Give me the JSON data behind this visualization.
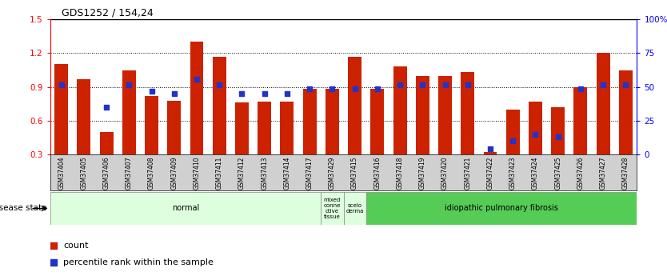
{
  "title": "GDS1252 / 154,24",
  "samples": [
    "GSM37404",
    "GSM37405",
    "GSM37406",
    "GSM37407",
    "GSM37408",
    "GSM37409",
    "GSM37410",
    "GSM37411",
    "GSM37412",
    "GSM37413",
    "GSM37414",
    "GSM37417",
    "GSM37429",
    "GSM37415",
    "GSM37416",
    "GSM37418",
    "GSM37419",
    "GSM37420",
    "GSM37421",
    "GSM37422",
    "GSM37423",
    "GSM37424",
    "GSM37425",
    "GSM37426",
    "GSM37427",
    "GSM37428"
  ],
  "bar_heights": [
    1.1,
    0.97,
    0.5,
    1.05,
    0.82,
    0.78,
    1.3,
    1.17,
    0.76,
    0.77,
    0.77,
    0.88,
    0.88,
    1.17,
    0.88,
    1.08,
    1.0,
    1.0,
    1.03,
    0.32,
    0.7,
    0.77,
    0.72,
    0.9,
    1.2,
    1.05
  ],
  "blue_vals": [
    0.92,
    null,
    0.72,
    0.92,
    0.86,
    0.84,
    0.97,
    0.92,
    0.84,
    0.84,
    0.84,
    0.88,
    0.88,
    0.88,
    0.88,
    0.92,
    0.92,
    0.92,
    0.92,
    0.35,
    0.42,
    0.48,
    0.46,
    0.88,
    0.92,
    0.92
  ],
  "bar_color": "#cc2200",
  "blue_color": "#2233cc",
  "ylim_left": [
    0.3,
    1.5
  ],
  "ylim_right": [
    0,
    100
  ],
  "yticks_left": [
    0.3,
    0.6,
    0.9,
    1.2,
    1.5
  ],
  "yticks_right": [
    0,
    25,
    50,
    75,
    100
  ],
  "ytick_labels_right": [
    "0",
    "25",
    "50",
    "75",
    "100%"
  ],
  "grid_vals": [
    0.6,
    0.9,
    1.2
  ],
  "disease_groups": [
    {
      "label": "normal",
      "start": 0,
      "end": 12,
      "color": "#ccffcc"
    },
    {
      "label": "mixed\nconne\nctive\ntissue",
      "start": 12,
      "end": 13,
      "color": "#ccffcc"
    },
    {
      "label": "scelo\nderma",
      "start": 13,
      "end": 14,
      "color": "#ccffcc"
    },
    {
      "label": "idiopathic pulmonary fibrosis",
      "start": 14,
      "end": 26,
      "color": "#44cc44"
    }
  ],
  "legend_count_label": "count",
  "legend_percentile_label": "percentile rank within the sample",
  "disease_state_label": "disease state",
  "xtick_bg_color": "#d0d0d0",
  "normal_color": "#ddffdd",
  "ipf_color": "#55cc55",
  "mixed_color": "#cceecc"
}
